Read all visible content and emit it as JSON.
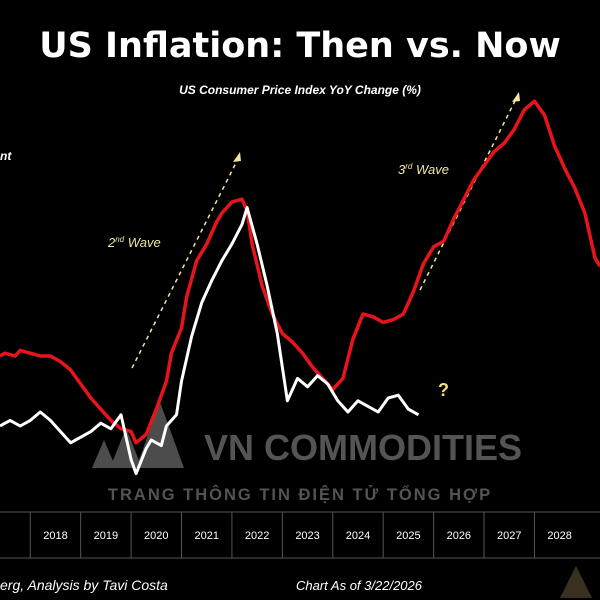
{
  "header": {
    "title": "US Inflation: Then vs. Now",
    "subtitle": "US Consumer Price Index YoY Change (%)"
  },
  "legend_fragment": "nt",
  "annotations": {
    "wave2": "2nd Wave",
    "wave3": "3rd Wave",
    "question": "?"
  },
  "watermark": {
    "brand": "VN COMMODITIES",
    "tagline": "TRANG THÔNG TIN ĐIỆN TỬ TỔNG HỢP"
  },
  "footer": {
    "source": "erg, Analysis by Tavi Costa",
    "asof": "Chart As of 3/22/2026"
  },
  "colors": {
    "background": "#000000",
    "then_series": "#e8141c",
    "now_series": "#ffffff",
    "annotation": "#f2e6a0",
    "question": "#f0e070",
    "watermark": "#9a9a9a"
  },
  "chart_data": {
    "type": "line",
    "title": "US Inflation: Then vs. Now",
    "subtitle": "US Consumer Price Index YoY Change (%)",
    "x_ticks": [
      "2018",
      "2019",
      "2020",
      "2021",
      "2022",
      "2023",
      "2024",
      "2025",
      "2026",
      "2027",
      "2028"
    ],
    "xlim": [
      2017.4,
      2029.3
    ],
    "ylim": [
      -1.0,
      13.0
    ],
    "grid": false,
    "series": [
      {
        "key": "then",
        "x": [
          2017.4,
          2017.5,
          2017.7,
          2017.8,
          2018.0,
          2018.2,
          2018.4,
          2018.6,
          2018.8,
          2019.0,
          2019.2,
          2019.4,
          2019.6,
          2019.8,
          2020.0,
          2020.1,
          2020.3,
          2020.5,
          2020.7,
          2020.8,
          2021.0,
          2021.1,
          2021.3,
          2021.5,
          2021.7,
          2021.8,
          2022.0,
          2022.2,
          2022.3,
          2022.4,
          2022.6,
          2022.8,
          2023.0,
          2023.2,
          2023.4,
          2023.6,
          2023.8,
          2024.0,
          2024.2,
          2024.4,
          2024.6,
          2024.8,
          2025.0,
          2025.2,
          2025.4,
          2025.6,
          2025.8,
          2026.0,
          2026.2,
          2026.4,
          2026.6,
          2026.8,
          2027.0,
          2027.2,
          2027.4,
          2027.6,
          2027.8,
          2028.0,
          2028.2,
          2028.4,
          2028.6,
          2028.8,
          2029.0,
          2029.2,
          2029.3
        ],
        "y": [
          3.5,
          3.6,
          3.5,
          3.7,
          3.6,
          3.5,
          3.5,
          3.3,
          3.0,
          2.5,
          2.0,
          1.6,
          1.2,
          0.9,
          0.8,
          0.4,
          0.7,
          1.6,
          2.6,
          3.6,
          4.5,
          5.6,
          6.9,
          7.5,
          8.3,
          8.6,
          9.0,
          9.1,
          8.7,
          7.5,
          6.0,
          5.0,
          4.3,
          4.0,
          3.6,
          3.1,
          2.7,
          2.3,
          2.7,
          4.1,
          5.0,
          4.9,
          4.7,
          4.8,
          5.0,
          5.8,
          6.8,
          7.4,
          7.6,
          8.4,
          9.1,
          9.8,
          10.3,
          10.8,
          11.1,
          11.6,
          12.3,
          12.6,
          12.1,
          11.0,
          10.2,
          9.5,
          8.6,
          7.0,
          6.7
        ]
      },
      {
        "key": "now",
        "x": [
          2017.4,
          2017.6,
          2017.8,
          2018.0,
          2018.2,
          2018.4,
          2018.6,
          2018.8,
          2019.0,
          2019.2,
          2019.4,
          2019.6,
          2019.8,
          2020.0,
          2020.1,
          2020.3,
          2020.4,
          2020.6,
          2020.7,
          2020.9,
          2021.0,
          2021.2,
          2021.4,
          2021.6,
          2021.8,
          2022.0,
          2022.2,
          2022.3,
          2022.5,
          2022.7,
          2022.9,
          2023.1,
          2023.3,
          2023.5,
          2023.7,
          2023.9,
          2024.1,
          2024.3,
          2024.5,
          2024.7,
          2024.9,
          2025.1,
          2025.3,
          2025.5,
          2025.7
        ],
        "y": [
          1.0,
          1.2,
          1.0,
          1.2,
          1.5,
          1.2,
          0.8,
          0.4,
          0.6,
          0.8,
          1.1,
          0.9,
          1.4,
          -0.2,
          -0.7,
          0.2,
          0.5,
          0.3,
          1.0,
          1.4,
          2.6,
          4.2,
          5.4,
          6.2,
          6.9,
          7.5,
          8.2,
          8.8,
          7.5,
          6.0,
          4.3,
          1.9,
          2.7,
          2.4,
          2.8,
          2.5,
          1.9,
          1.5,
          1.9,
          1.7,
          1.5,
          2.0,
          2.1,
          1.6,
          1.4
        ]
      }
    ]
  }
}
